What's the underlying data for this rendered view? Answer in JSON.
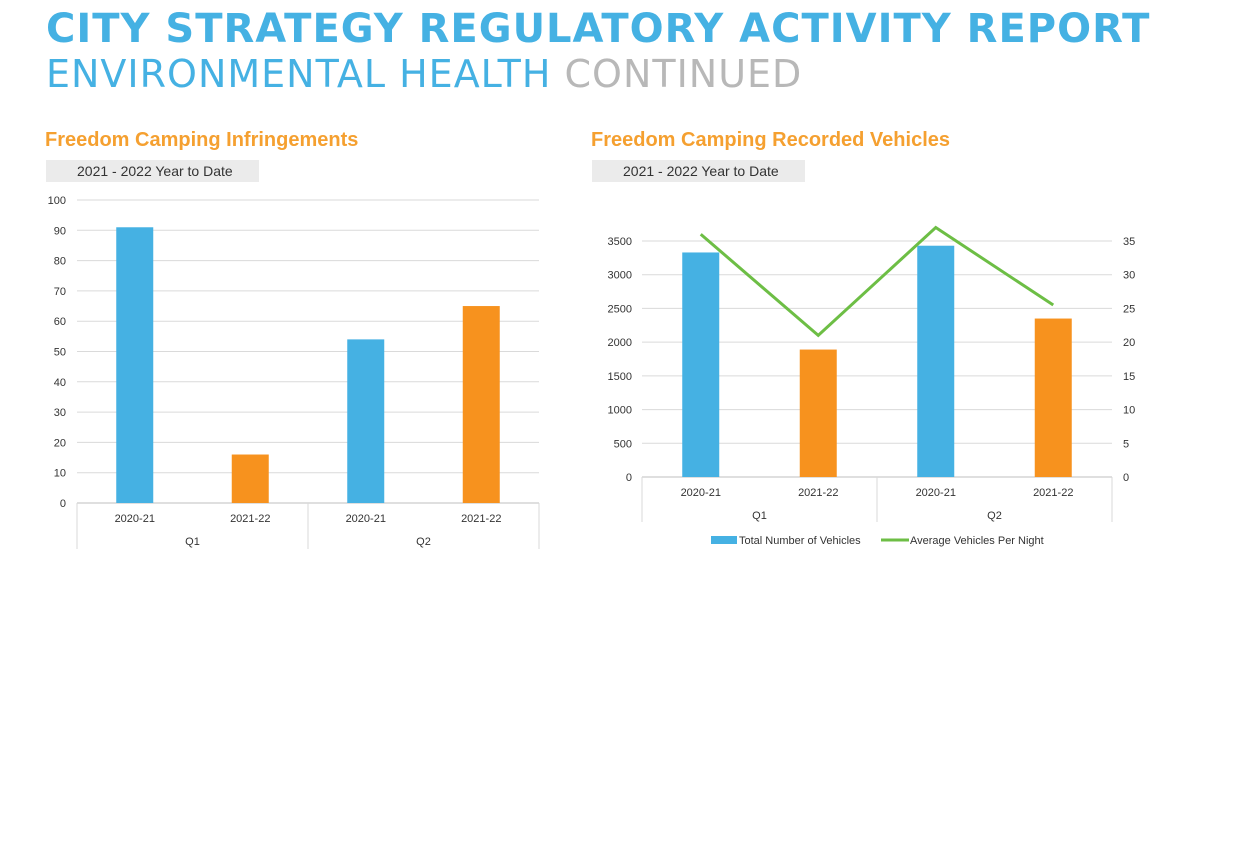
{
  "header": {
    "title": "CITY STRATEGY REGULATORY ACTIVITY REPORT",
    "subtitle_primary": "ENVIRONMENTAL HEALTH",
    "subtitle_secondary": "CONTINUED"
  },
  "colors": {
    "blue": "#45B1E3",
    "orange": "#F7921E",
    "green": "#6DBE45",
    "heading": "#F5A030"
  },
  "chart_data": [
    {
      "type": "bar",
      "title": "Freedom Camping Infringements",
      "subtitle": "2021 - 2022 Year to Date",
      "groups": [
        "Q1",
        "Q2"
      ],
      "categories": [
        "2020-21",
        "2021-22",
        "2020-21",
        "2021-22"
      ],
      "values": [
        91,
        16,
        54,
        65
      ],
      "bar_colors": [
        "blue",
        "orange",
        "blue",
        "orange"
      ],
      "ylim": [
        0,
        100
      ],
      "yticks": [
        0,
        10,
        20,
        30,
        40,
        50,
        60,
        70,
        80,
        90,
        100
      ],
      "xlabel": "",
      "ylabel": "",
      "grid": true
    },
    {
      "type": "bar",
      "title": "Freedom Camping Recorded Vehicles",
      "subtitle": "2021 - 2022 Year to Date",
      "groups": [
        "Q1",
        "Q2"
      ],
      "categories": [
        "2020-21",
        "2021-22",
        "2020-21",
        "2021-22"
      ],
      "series": [
        {
          "name": "Total Number of Vehicles",
          "type": "bar",
          "axis": "left",
          "values": [
            3330,
            1890,
            3430,
            2350
          ]
        },
        {
          "name": "Average Vehicles Per Night",
          "type": "line",
          "axis": "right",
          "values": [
            36,
            21,
            37,
            25.5
          ]
        }
      ],
      "bar_colors": [
        "blue",
        "orange",
        "blue",
        "orange"
      ],
      "ylim": [
        0,
        3500
      ],
      "yticks": [
        0,
        500,
        1000,
        1500,
        2000,
        2500,
        3000,
        3500
      ],
      "y2lim": [
        0,
        35
      ],
      "y2ticks": [
        0,
        5,
        10,
        15,
        20,
        25,
        30,
        35
      ],
      "legend": "bottom",
      "grid": true
    }
  ]
}
